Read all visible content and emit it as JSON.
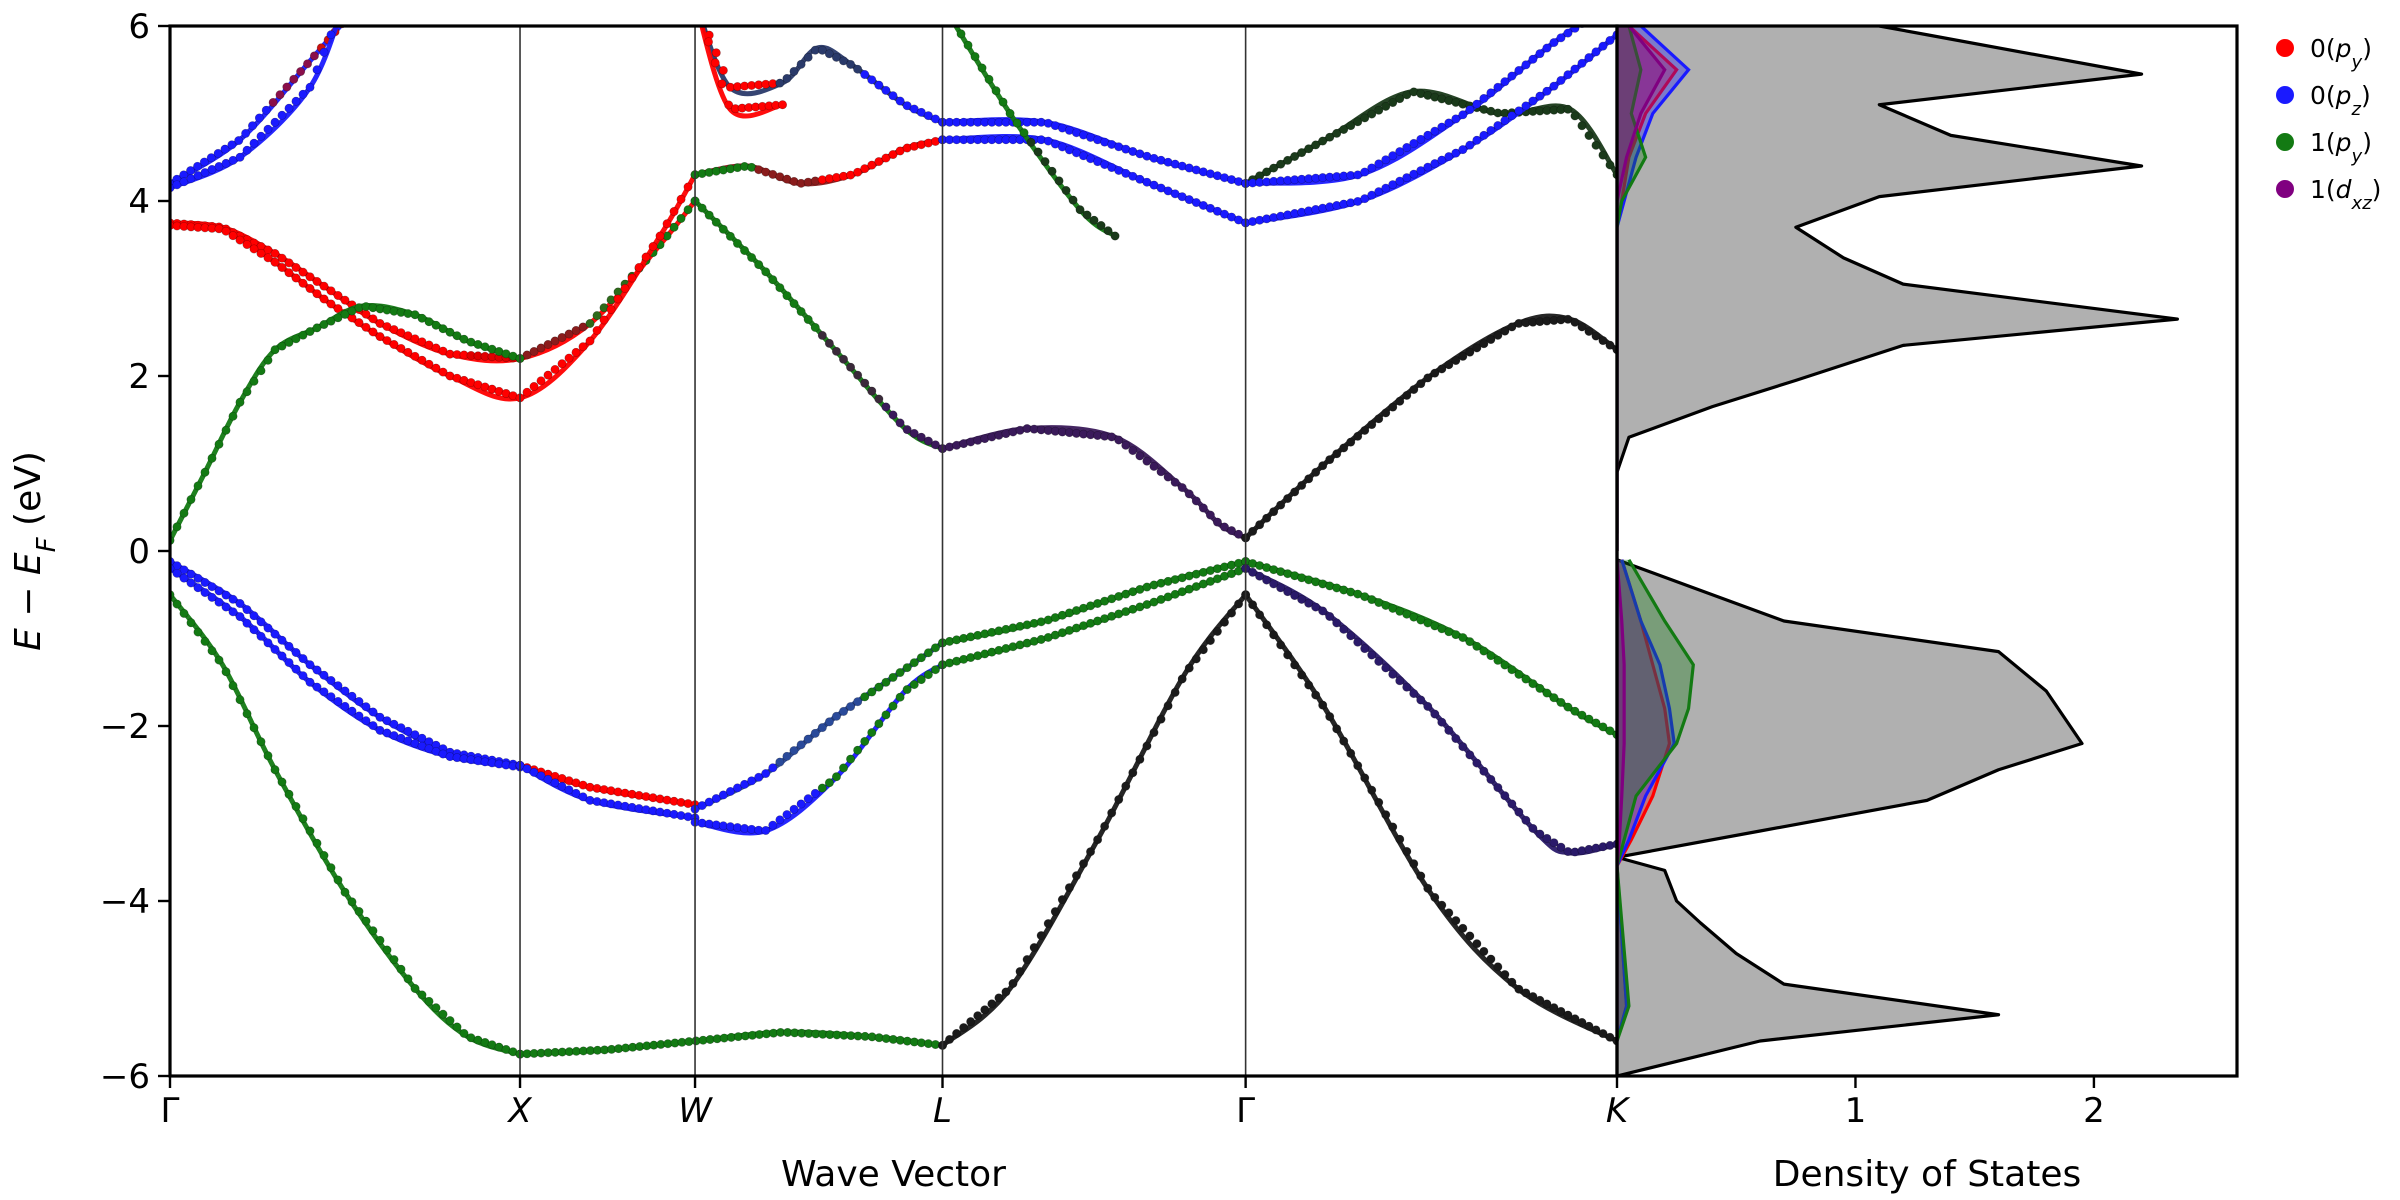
{
  "chart_data": [
    {
      "type": "line",
      "panel": "band structure",
      "xlabel": "Wave Vector",
      "ylabel": "E − E_F (eV)",
      "ylim": [
        -6,
        6
      ],
      "yticks": [
        -6,
        -4,
        -2,
        0,
        2,
        4,
        6
      ],
      "ytick_labels": [
        "−6",
        "−4",
        "−2",
        "0",
        "2",
        "4",
        "6"
      ],
      "kpoints": [
        {
          "label": "Γ",
          "x": 0.0
        },
        {
          "label": "X",
          "x": 1.0
        },
        {
          "label": "W",
          "x": 1.5
        },
        {
          "label": "L",
          "x": 2.207
        },
        {
          "label": "Γ",
          "x": 3.073
        },
        {
          "label": "K",
          "x": 4.134
        }
      ],
      "xlim": [
        0,
        4.134
      ],
      "bands": [
        {
          "colors": [
            "#1a1aff",
            "#1a1aff",
            "#8a0f4a",
            "#cc0f0f"
          ],
          "x": [
            0,
            0.2,
            0.4,
            0.55
          ],
          "y": [
            4.2,
            4.7,
            5.6,
            6.3
          ]
        },
        {
          "colors": [
            "#1a1aff",
            "#1a1aff"
          ],
          "x": [
            0,
            0.2,
            0.4,
            0.5
          ],
          "y": [
            4.15,
            4.5,
            5.3,
            6.3
          ]
        },
        {
          "colors": [
            "#ff0000",
            "#ff0000",
            "#ff0000",
            "#ff0000",
            "#ff0000",
            "#e00000",
            "#8a1c1c",
            "#2e6a1a",
            "#137a13"
          ],
          "x": [
            0,
            0.15,
            0.3,
            0.45,
            0.6,
            0.8,
            1.0,
            1.2,
            1.4,
            1.5
          ],
          "y": [
            3.75,
            3.7,
            3.4,
            3.0,
            2.6,
            2.25,
            2.2,
            2.6,
            3.5,
            4.0
          ]
        },
        {
          "colors": [
            "#ff0000",
            "#ff0000",
            "#ff0000",
            "#ff0000",
            "#ff0000",
            "#ff0000"
          ],
          "x": [
            0,
            0.15,
            0.3,
            0.45,
            0.6,
            0.8,
            1.0,
            1.2,
            1.4,
            1.5
          ],
          "y": [
            3.72,
            3.68,
            3.3,
            2.85,
            2.45,
            2.0,
            1.75,
            2.4,
            3.6,
            4.3
          ]
        },
        {
          "colors": [
            "#137a13",
            "#137a13",
            "#137a13",
            "#137a13"
          ],
          "x": [
            0,
            0.1,
            0.2,
            0.3,
            0.42,
            0.55,
            0.7,
            0.85,
            1.0
          ],
          "y": [
            0.12,
            0.9,
            1.7,
            2.3,
            2.55,
            2.8,
            2.7,
            2.4,
            2.2
          ]
        },
        {
          "colors": [
            "#1a1aff"
          ],
          "x": [
            0,
            0.2,
            0.4,
            0.6,
            0.8,
            1.0
          ],
          "y": [
            -0.12,
            -0.6,
            -1.3,
            -1.9,
            -2.3,
            -2.45
          ]
        },
        {
          "colors": [
            "#1a1aff"
          ],
          "x": [
            0,
            0.2,
            0.4,
            0.6,
            0.8,
            1.0
          ],
          "y": [
            -0.2,
            -0.75,
            -1.5,
            -2.05,
            -2.35,
            -2.47
          ]
        },
        {
          "colors": [
            "#137a13"
          ],
          "x": [
            0,
            0.15,
            0.3,
            0.5,
            0.7,
            0.85,
            1.0
          ],
          "y": [
            -0.5,
            -1.3,
            -2.5,
            -3.9,
            -5.0,
            -5.55,
            -5.75
          ]
        },
        {
          "colors": [
            "#ff0000"
          ],
          "x": [
            1.0,
            1.2,
            1.5
          ],
          "y": [
            -2.45,
            -2.7,
            -2.9
          ]
        },
        {
          "colors": [
            "#1a1aff"
          ],
          "x": [
            1.0,
            1.2,
            1.5
          ],
          "y": [
            -2.45,
            -2.85,
            -3.05
          ]
        },
        {
          "colors": [
            "#137a13"
          ],
          "x": [
            1.0,
            1.25,
            1.5,
            1.75,
            2.0,
            2.207
          ],
          "y": [
            -5.75,
            -5.7,
            -5.6,
            -5.5,
            -5.55,
            -5.65
          ]
        },
        {
          "colors": [
            "#1a1aff",
            "#2a4a9a",
            "#137a13"
          ],
          "x": [
            1.5,
            1.7,
            1.9,
            2.1,
            2.207
          ],
          "y": [
            -2.95,
            -2.55,
            -1.9,
            -1.35,
            -1.05
          ]
        },
        {
          "colors": [
            "#1a1aff",
            "#137a13"
          ],
          "x": [
            1.5,
            1.7,
            1.9,
            2.1,
            2.207
          ],
          "y": [
            -3.1,
            -3.2,
            -2.6,
            -1.6,
            -1.3
          ]
        },
        {
          "colors": [
            "#137a13",
            "#137a13",
            "#3a2a3a",
            "#3a1a5a"
          ],
          "x": [
            1.5,
            1.7,
            1.9,
            2.1,
            2.207
          ],
          "y": [
            4.0,
            3.2,
            2.3,
            1.4,
            1.17
          ]
        },
        {
          "colors": [
            "#137a13",
            "#8a1c1c",
            "#ff0000",
            "#ff0000"
          ],
          "x": [
            1.5,
            1.65,
            1.8,
            1.95,
            2.1,
            2.207
          ],
          "y": [
            4.3,
            4.4,
            4.2,
            4.3,
            4.6,
            4.7
          ]
        },
        {
          "colors": [
            "#ff0000",
            "#2a3a6a",
            "#1a1aff"
          ],
          "x": [
            1.5,
            1.6,
            1.75,
            1.85,
            1.95,
            2.1,
            2.207
          ],
          "y": [
            6.3,
            5.3,
            5.35,
            5.75,
            5.55,
            5.1,
            4.9
          ]
        },
        {
          "colors": [
            "#ff0000"
          ],
          "x": [
            1.5,
            1.6,
            1.75
          ],
          "y": [
            6.3,
            5.05,
            5.1
          ]
        },
        {
          "colors": [
            "#1a1aff"
          ],
          "x": [
            2.207,
            2.5,
            2.8,
            3.073
          ],
          "y": [
            4.9,
            4.9,
            4.5,
            4.2
          ]
        },
        {
          "colors": [
            "#1a1aff"
          ],
          "x": [
            2.207,
            2.5,
            2.8,
            3.073
          ],
          "y": [
            4.7,
            4.7,
            4.2,
            3.75
          ]
        },
        {
          "colors": [
            "#3a1a5a"
          ],
          "x": [
            2.207,
            2.45,
            2.7,
            2.9,
            3.0,
            3.073
          ],
          "y": [
            1.17,
            1.4,
            1.3,
            0.7,
            0.3,
            0.15
          ]
        },
        {
          "colors": [
            "#137a13"
          ],
          "x": [
            2.207,
            2.5,
            2.8,
            3.073
          ],
          "y": [
            -1.05,
            -0.8,
            -0.4,
            -0.12
          ]
        },
        {
          "colors": [
            "#137a13"
          ],
          "x": [
            2.207,
            2.5,
            2.8,
            3.073
          ],
          "y": [
            -1.3,
            -1.0,
            -0.6,
            -0.2
          ]
        },
        {
          "colors": [
            "#1a1a1a"
          ],
          "x": [
            2.207,
            2.4,
            2.65,
            2.9,
            3.073
          ],
          "y": [
            -5.65,
            -5.0,
            -3.3,
            -1.4,
            -0.5
          ]
        },
        {
          "colors": [
            "#137a13",
            "#1a3a1a"
          ],
          "x": [
            2.2,
            2.4,
            2.6,
            2.7
          ],
          "y": [
            6.3,
            5.0,
            3.9,
            3.6
          ]
        },
        {
          "colors": [
            "#1a1a1a",
            "#1a1a1a"
          ],
          "x": [
            3.073,
            3.3,
            3.6,
            3.85,
            4.0,
            4.134
          ],
          "y": [
            0.15,
            1.0,
            2.0,
            2.6,
            2.65,
            2.3
          ]
        },
        {
          "colors": [
            "#137a13"
          ],
          "x": [
            3.073,
            3.4,
            3.7,
            4.0,
            4.134
          ],
          "y": [
            -0.12,
            -0.5,
            -1.0,
            -1.8,
            -2.1
          ]
        },
        {
          "colors": [
            "#2a1a6a"
          ],
          "x": [
            3.073,
            3.3,
            3.6,
            3.9,
            4.0,
            4.134
          ],
          "y": [
            -0.2,
            -0.7,
            -1.8,
            -3.2,
            -3.45,
            -3.35
          ]
        },
        {
          "colors": [
            "#1a1a1a"
          ],
          "x": [
            3.073,
            3.3,
            3.6,
            3.85,
            4.134
          ],
          "y": [
            -0.5,
            -1.8,
            -3.9,
            -5.0,
            -5.6
          ]
        },
        {
          "colors": [
            "#1a3a1a"
          ],
          "x": [
            3.073,
            3.3,
            3.55,
            3.8,
            4.0,
            4.134
          ],
          "y": [
            4.2,
            4.7,
            5.25,
            5.0,
            5.05,
            4.3
          ]
        },
        {
          "colors": [
            "#1a1aff"
          ],
          "x": [
            3.073,
            3.4,
            3.7,
            3.95,
            4.134
          ],
          "y": [
            4.2,
            4.3,
            5.0,
            5.8,
            6.3
          ]
        },
        {
          "colors": [
            "#1a1aff"
          ],
          "x": [
            3.073,
            3.4,
            3.7,
            3.95,
            4.134
          ],
          "y": [
            3.75,
            4.0,
            4.6,
            5.3,
            5.9
          ]
        }
      ],
      "vlines_at": [
        1.0,
        1.5,
        2.207,
        3.073
      ]
    },
    {
      "type": "area",
      "panel": "density of states",
      "xlabel": "Density of States",
      "xticks": [
        1,
        2
      ],
      "xtick_labels": [
        "1",
        "2"
      ],
      "xlim": [
        0,
        2.6
      ],
      "ylim": [
        -6,
        6
      ],
      "total": {
        "color": "#b0b0b0",
        "line_color": "#000000",
        "y": [
          6.0,
          5.9,
          5.45,
          5.1,
          4.75,
          4.4,
          4.05,
          3.7,
          3.35,
          3.05,
          2.65,
          2.35,
          1.95,
          1.65,
          1.3,
          0.9,
          0.2,
          -0.1,
          -0.4,
          -0.8,
          -1.15,
          -1.6,
          -2.2,
          -2.5,
          -2.85,
          -3.2,
          -3.5,
          -3.65,
          -4.0,
          -4.25,
          -4.6,
          -4.95,
          -5.3,
          -5.6,
          -6.0
        ],
        "x": [
          1.1,
          1.3,
          2.2,
          1.1,
          1.4,
          2.2,
          1.1,
          0.75,
          0.95,
          1.2,
          2.35,
          1.2,
          0.75,
          0.4,
          0.05,
          0.0,
          0.0,
          0.0,
          0.3,
          0.7,
          1.6,
          1.8,
          1.95,
          1.6,
          1.3,
          0.6,
          0.0,
          0.2,
          0.25,
          0.35,
          0.5,
          0.7,
          1.6,
          0.6,
          0.0
        ]
      },
      "projections": [
        {
          "name": "0(p_y)",
          "label_main": "0(",
          "label_sym": "p",
          "label_sub": "y",
          "color": "#ff0000",
          "y": [
            6.0,
            5.5,
            5.0,
            4.5,
            4.0,
            3.7,
            3.0,
            0.0,
            -0.1,
            -0.8,
            -1.3,
            -1.8,
            -2.2,
            -2.8,
            -3.3,
            -3.6,
            -5.2,
            -5.6
          ],
          "x": [
            0.05,
            0.25,
            0.12,
            0.05,
            0.02,
            0.0,
            0.0,
            0.0,
            0.02,
            0.1,
            0.15,
            0.2,
            0.22,
            0.15,
            0.06,
            0.0,
            0.04,
            0.0
          ]
        },
        {
          "name": "0(p_z)",
          "label_main": "0(",
          "label_sym": "p",
          "label_sub": "z",
          "color": "#1a1aff",
          "y": [
            6.0,
            5.5,
            5.0,
            4.5,
            4.0,
            3.7,
            3.0,
            0.0,
            -0.1,
            -0.8,
            -1.3,
            -1.8,
            -2.2,
            -2.8,
            -3.3,
            -3.6,
            -5.2,
            -5.6
          ],
          "x": [
            0.1,
            0.3,
            0.15,
            0.08,
            0.03,
            0.0,
            0.0,
            0.0,
            0.02,
            0.1,
            0.18,
            0.22,
            0.24,
            0.12,
            0.05,
            0.0,
            0.04,
            0.0
          ]
        },
        {
          "name": "1(p_y)",
          "label_main": "1(",
          "label_sym": "p",
          "label_sub": "y",
          "color": "#137a13",
          "y": [
            6.0,
            5.5,
            5.0,
            4.5,
            4.0,
            3.7,
            3.0,
            0.0,
            -0.1,
            -0.8,
            -1.3,
            -1.8,
            -2.2,
            -2.8,
            -3.3,
            -3.6,
            -5.2,
            -5.6
          ],
          "x": [
            0.05,
            0.1,
            0.06,
            0.12,
            0.02,
            0.0,
            0.0,
            0.0,
            0.05,
            0.2,
            0.32,
            0.3,
            0.25,
            0.08,
            0.03,
            0.0,
            0.05,
            0.0
          ]
        },
        {
          "name": "1(d_xz)",
          "label_main": "1(",
          "label_sym": "d",
          "label_sub": "xz",
          "color": "#800080",
          "y": [
            6.0,
            5.5,
            5.0,
            4.5,
            4.0,
            3.7,
            3.0,
            0.0,
            -0.1,
            -0.8,
            -1.3,
            -1.8,
            -2.2,
            -2.8,
            -3.3,
            -3.6,
            -5.2,
            -5.6
          ],
          "x": [
            0.05,
            0.2,
            0.1,
            0.04,
            0.0,
            0.0,
            0.0,
            0.0,
            0.0,
            0.02,
            0.03,
            0.03,
            0.03,
            0.02,
            0.01,
            0.0,
            0.0,
            0.0
          ]
        }
      ],
      "legend_placement": "outside right, top"
    }
  ]
}
